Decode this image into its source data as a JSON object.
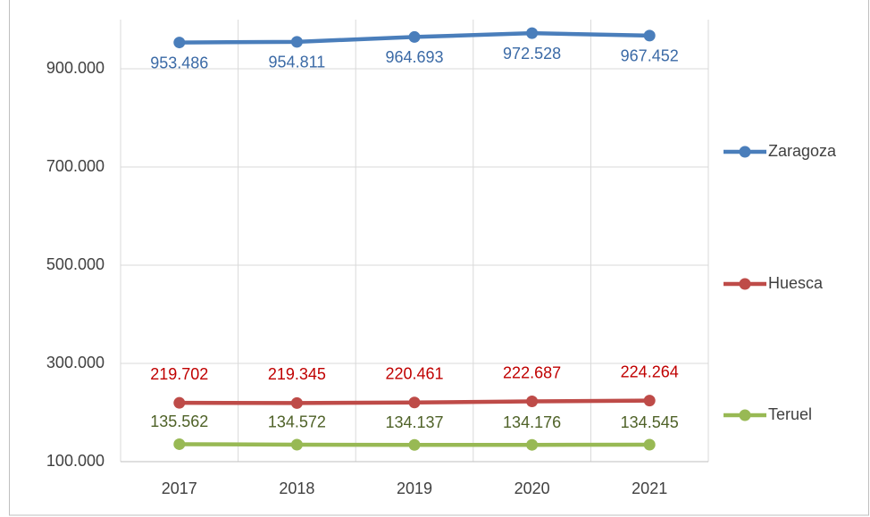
{
  "chart_data": {
    "type": "line",
    "categories": [
      "2017",
      "2018",
      "2019",
      "2020",
      "2021"
    ],
    "series": [
      {
        "name": "Zaragoza",
        "color": "#4a7ebb",
        "label_color": "#3b6aa6",
        "values": [
          953486,
          954811,
          964693,
          972528,
          967452
        ],
        "value_labels": [
          "953.486",
          "954.811",
          "964.693",
          "972.528",
          "967.452"
        ]
      },
      {
        "name": "Huesca",
        "color": "#be4b48",
        "label_color": "#c00000",
        "values": [
          219702,
          219345,
          220461,
          222687,
          224264
        ],
        "value_labels": [
          "219.702",
          "219.345",
          "220.461",
          "222.687",
          "224.264"
        ]
      },
      {
        "name": "Teruel",
        "color": "#98b954",
        "label_color": "#4f6228",
        "values": [
          135562,
          134572,
          134137,
          134176,
          134545
        ],
        "value_labels": [
          "135.562",
          "134.572",
          "134.137",
          "134.176",
          "134.545"
        ]
      }
    ],
    "ylim": [
      100000,
      1000000
    ],
    "yticks": [
      {
        "value": 100000,
        "label": "100.000"
      },
      {
        "value": 300000,
        "label": "300.000"
      },
      {
        "value": 500000,
        "label": "500.000"
      },
      {
        "value": 700000,
        "label": "700.000"
      },
      {
        "value": 900000,
        "label": "900.000"
      }
    ],
    "grid": true,
    "legend": "right"
  }
}
